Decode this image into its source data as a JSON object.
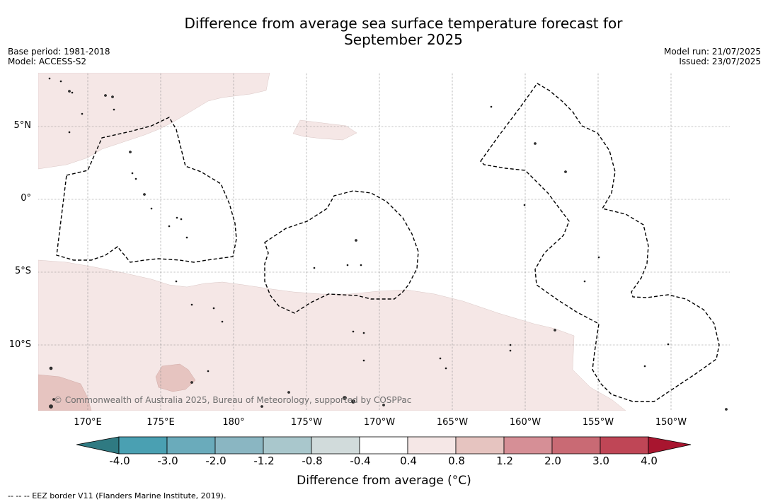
{
  "title_line1": "Difference from average sea surface temperature forecast for",
  "title_line2": "September 2025",
  "base_period": "Base period: 1981-2018",
  "model": "Model: ACCESS-S2",
  "model_run": "Model run: 21/07/2025",
  "issued": "Issued: 23/07/2025",
  "lat_labels": [
    "5°N",
    "0°",
    "5°S",
    "10°S"
  ],
  "lon_labels": [
    "170°E",
    "175°E",
    "180°",
    "175°W",
    "170°W",
    "165°W",
    "160°W",
    "155°W",
    "150°W"
  ],
  "copyright": "© Commonwealth of Australia 2025, Bureau of Meteorology, supported by COSPPac",
  "colorbar": {
    "ticks": [
      "-4.0",
      "-3.0",
      "-2.0",
      "-1.2",
      "-0.8",
      "-0.4",
      "0.4",
      "0.8",
      "1.2",
      "2.0",
      "3.0",
      "4.0"
    ],
    "colors": [
      "#2f7a82",
      "#4aa0b2",
      "#6aabbb",
      "#8ab6c2",
      "#a9c7cc",
      "#d1dbdb",
      "#ffffff",
      "#f5e7e6",
      "#e6c4c0",
      "#d68f96",
      "#c96a74",
      "#bf4656",
      "#a8152f"
    ],
    "label": "Difference from average (°C)"
  },
  "footnote": "--  --  -- EEZ border V11 (Flanders Marine Institute, 2019)."
}
